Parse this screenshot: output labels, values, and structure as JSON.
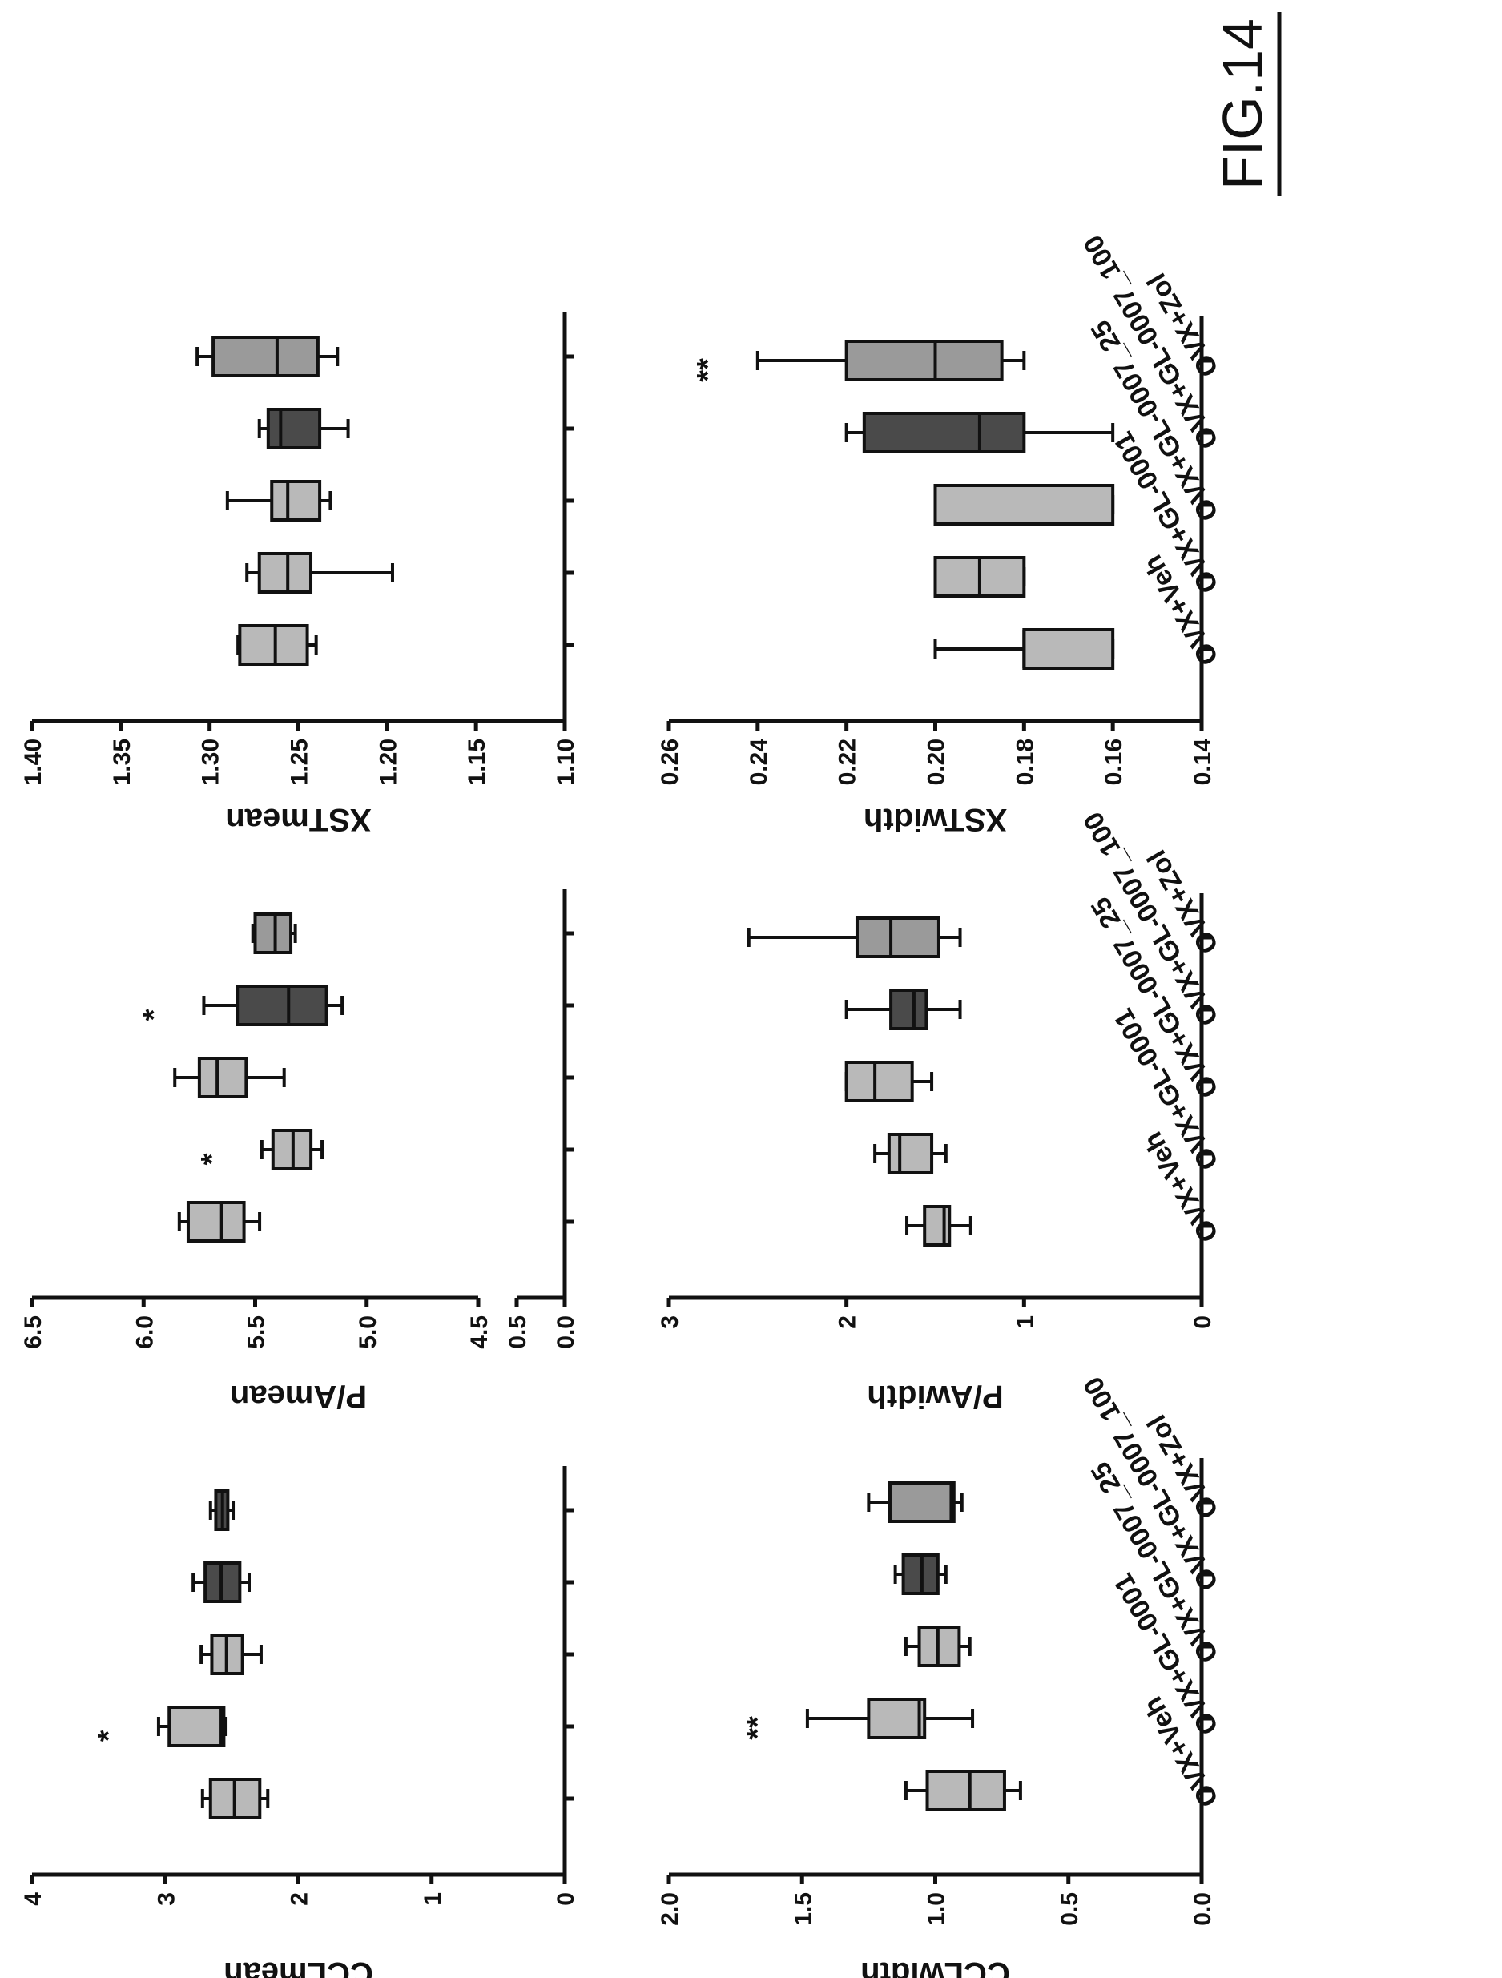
{
  "figure_label": "FIG.14",
  "categories": [
    "OVX+Veh",
    "OVX+GL-0001",
    "OVX+GL-0007_25",
    "OVX+GL-0007_100",
    "OVX+Zol"
  ],
  "colors": {
    "light": "#b9b9b9",
    "medium": "#9a9a9a",
    "dark": "#4a4a4a",
    "ink": "#111111"
  },
  "chart_data": [
    {
      "type": "box",
      "ylabel": "XSTmean",
      "yticks": [
        "1.40",
        "1.35",
        "1.30",
        "1.25",
        "1.20",
        "1.15",
        "1.10"
      ],
      "ylim": [
        1.1,
        1.4
      ],
      "series": [
        {
          "category": "OVX+Veh",
          "min": 1.24,
          "q1": 1.245,
          "median": 1.263,
          "q3": 1.283,
          "max": 1.284,
          "fill": "light"
        },
        {
          "category": "OVX+GL-0001",
          "min": 1.197,
          "q1": 1.243,
          "median": 1.256,
          "q3": 1.272,
          "max": 1.279,
          "fill": "light"
        },
        {
          "category": "OVX+GL-0007_25",
          "min": 1.232,
          "q1": 1.238,
          "median": 1.256,
          "q3": 1.265,
          "max": 1.29,
          "fill": "light"
        },
        {
          "category": "OVX+GL-0007_100",
          "min": 1.222,
          "q1": 1.238,
          "median": 1.26,
          "q3": 1.267,
          "max": 1.272,
          "fill": "dark"
        },
        {
          "category": "OVX+Zol",
          "min": 1.228,
          "q1": 1.239,
          "median": 1.262,
          "q3": 1.298,
          "max": 1.307,
          "fill": "medium"
        }
      ]
    },
    {
      "type": "box",
      "ylabel": "P/Amean",
      "yticks": [
        "6.5",
        "6.0",
        "5.5",
        "5.0",
        "4.5",
        "0.5",
        "0.0"
      ],
      "ylim": [
        0.0,
        6.5
      ],
      "axis_break": true,
      "annotations": [
        {
          "category": "OVX+GL-0001",
          "text": "*"
        },
        {
          "category": "OVX+GL-0007_100",
          "text": "*"
        }
      ],
      "series": [
        {
          "category": "OVX+Veh",
          "min": 5.48,
          "q1": 5.55,
          "median": 5.65,
          "q3": 5.8,
          "max": 5.84,
          "fill": "light"
        },
        {
          "category": "OVX+GL-0001",
          "min": 5.2,
          "q1": 5.25,
          "median": 5.33,
          "q3": 5.42,
          "max": 5.47,
          "fill": "light"
        },
        {
          "category": "OVX+GL-0007_25",
          "min": 5.37,
          "q1": 5.54,
          "median": 5.67,
          "q3": 5.75,
          "max": 5.86,
          "fill": "light"
        },
        {
          "category": "OVX+GL-0007_100",
          "min": 5.11,
          "q1": 5.18,
          "median": 5.35,
          "q3": 5.58,
          "max": 5.73,
          "fill": "dark"
        },
        {
          "category": "OVX+Zol",
          "min": 5.32,
          "q1": 5.34,
          "median": 5.41,
          "q3": 5.5,
          "max": 5.51,
          "fill": "medium"
        }
      ]
    },
    {
      "type": "box",
      "ylabel": "CCLmean",
      "yticks": [
        "4",
        "3",
        "2",
        "1",
        "0"
      ],
      "ylim": [
        0,
        4
      ],
      "annotations": [
        {
          "category": "OVX+GL-0001",
          "text": "*"
        }
      ],
      "series": [
        {
          "category": "OVX+Veh",
          "min": 2.23,
          "q1": 2.29,
          "median": 2.48,
          "q3": 2.66,
          "max": 2.72,
          "fill": "light"
        },
        {
          "category": "OVX+GL-0001",
          "min": 2.55,
          "q1": 2.56,
          "median": 2.58,
          "q3": 2.97,
          "max": 3.05,
          "fill": "light"
        },
        {
          "category": "OVX+GL-0007_25",
          "min": 2.28,
          "q1": 2.42,
          "median": 2.54,
          "q3": 2.65,
          "max": 2.73,
          "fill": "light"
        },
        {
          "category": "OVX+GL-0007_100",
          "min": 2.37,
          "q1": 2.44,
          "median": 2.58,
          "q3": 2.7,
          "max": 2.79,
          "fill": "dark"
        },
        {
          "category": "OVX+Zol",
          "min": 2.49,
          "q1": 2.53,
          "median": 2.57,
          "q3": 2.62,
          "max": 2.66,
          "fill": "dark"
        }
      ]
    },
    {
      "type": "box",
      "ylabel": "XSTwidth",
      "yticks": [
        "0.26",
        "0.24",
        "0.22",
        "0.20",
        "0.18",
        "0.16",
        "0.14"
      ],
      "ylim": [
        0.14,
        0.26
      ],
      "annotations": [
        {
          "category": "OVX+Zol",
          "text": "**"
        }
      ],
      "series": [
        {
          "category": "OVX+Veh",
          "min": 0.16,
          "q1": 0.16,
          "median": 0.18,
          "q3": 0.18,
          "max": 0.2,
          "fill": "light"
        },
        {
          "category": "OVX+GL-0001",
          "min": 0.18,
          "q1": 0.18,
          "median": 0.19,
          "q3": 0.2,
          "max": 0.2,
          "fill": "light"
        },
        {
          "category": "OVX+GL-0007_25",
          "min": 0.16,
          "q1": 0.16,
          "median": 0.2,
          "q3": 0.2,
          "max": 0.2,
          "fill": "light"
        },
        {
          "category": "OVX+GL-0007_100",
          "min": 0.16,
          "q1": 0.18,
          "median": 0.19,
          "q3": 0.216,
          "max": 0.22,
          "fill": "dark"
        },
        {
          "category": "OVX+Zol",
          "min": 0.18,
          "q1": 0.185,
          "median": 0.2,
          "q3": 0.22,
          "max": 0.24,
          "fill": "medium"
        }
      ]
    },
    {
      "type": "box",
      "ylabel": "P/Awidth",
      "yticks": [
        "3",
        "2",
        "1",
        "0"
      ],
      "ylim": [
        0,
        3
      ],
      "series": [
        {
          "category": "OVX+Veh",
          "min": 1.3,
          "q1": 1.42,
          "median": 1.45,
          "q3": 1.56,
          "max": 1.66,
          "fill": "light"
        },
        {
          "category": "OVX+GL-0001",
          "min": 1.44,
          "q1": 1.52,
          "median": 1.7,
          "q3": 1.76,
          "max": 1.84,
          "fill": "light"
        },
        {
          "category": "OVX+GL-0007_25",
          "min": 1.52,
          "q1": 1.63,
          "median": 1.84,
          "q3": 2.0,
          "max": 2.0,
          "fill": "light"
        },
        {
          "category": "OVX+GL-0007_100",
          "min": 1.36,
          "q1": 1.55,
          "median": 1.62,
          "q3": 1.75,
          "max": 2.0,
          "fill": "dark"
        },
        {
          "category": "OVX+Zol",
          "min": 1.36,
          "q1": 1.48,
          "median": 1.75,
          "q3": 1.94,
          "max": 2.55,
          "fill": "medium"
        }
      ]
    },
    {
      "type": "box",
      "ylabel": "CCLwidth",
      "yticks": [
        "2.0",
        "1.5",
        "1.0",
        "0.5",
        "0.0"
      ],
      "ylim": [
        0.0,
        2.0
      ],
      "annotations": [
        {
          "category": "OVX+GL-0001",
          "text": "**"
        }
      ],
      "series": [
        {
          "category": "OVX+Veh",
          "min": 0.68,
          "q1": 0.74,
          "median": 0.87,
          "q3": 1.03,
          "max": 1.11,
          "fill": "light"
        },
        {
          "category": "OVX+GL-0001",
          "min": 0.86,
          "q1": 1.04,
          "median": 1.06,
          "q3": 1.25,
          "max": 1.48,
          "fill": "light"
        },
        {
          "category": "OVX+GL-0007_25",
          "min": 0.87,
          "q1": 0.91,
          "median": 0.99,
          "q3": 1.06,
          "max": 1.11,
          "fill": "light"
        },
        {
          "category": "OVX+GL-0007_100",
          "min": 0.96,
          "q1": 0.99,
          "median": 1.05,
          "q3": 1.12,
          "max": 1.15,
          "fill": "dark"
        },
        {
          "category": "OVX+Zol",
          "min": 0.9,
          "q1": 0.93,
          "median": 0.94,
          "q3": 1.17,
          "max": 1.25,
          "fill": "medium"
        }
      ]
    }
  ]
}
